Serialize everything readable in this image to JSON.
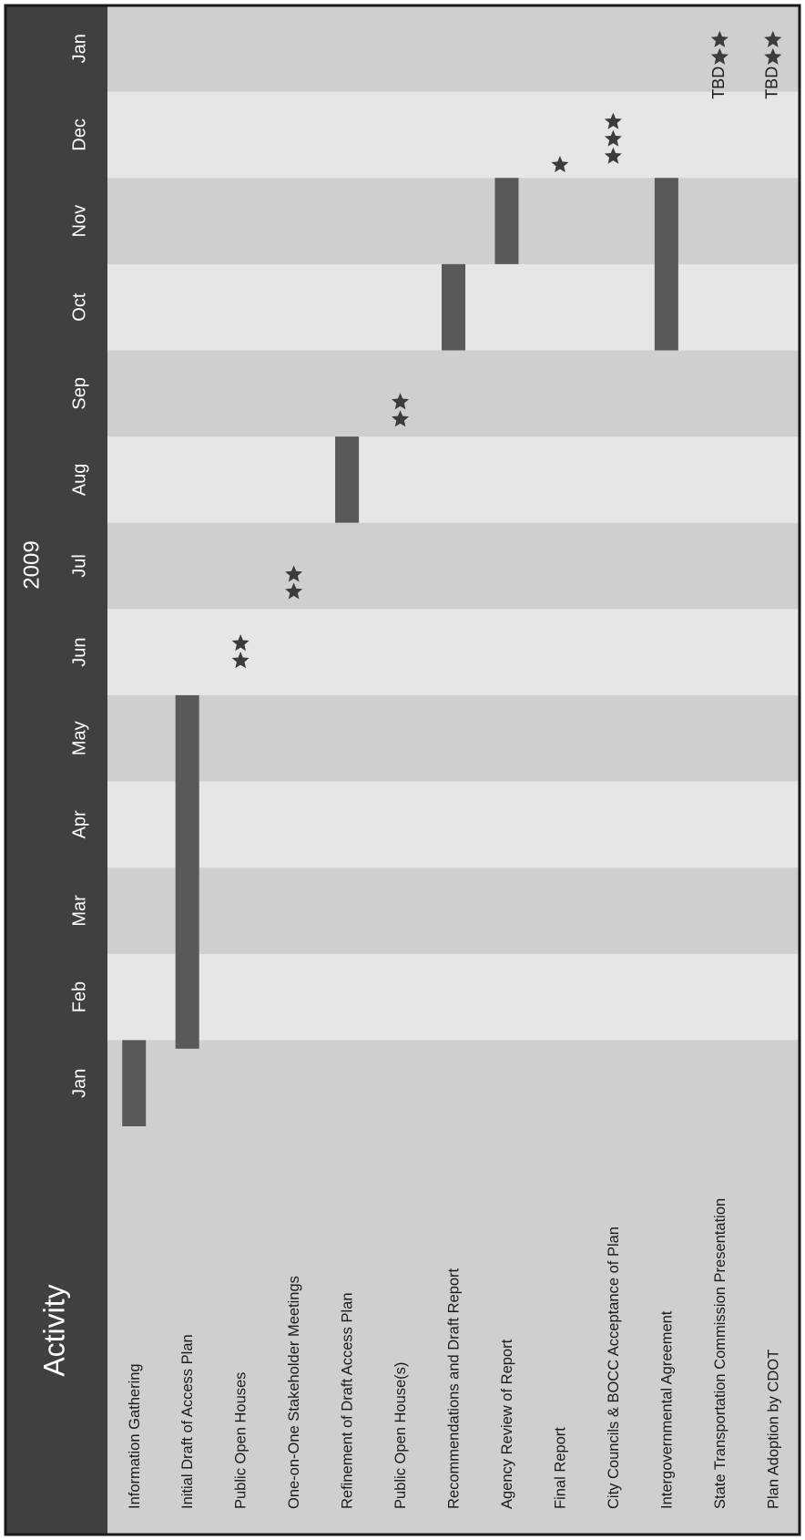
{
  "chart_data": {
    "type": "gantt",
    "header": {
      "title": "Activity",
      "year_label": "2009"
    },
    "months": [
      "Jan",
      "Feb",
      "Mar",
      "Apr",
      "May",
      "Jun",
      "Jul",
      "Aug",
      "Sep",
      "Oct",
      "Nov",
      "Dec",
      "Jan"
    ],
    "activities": [
      {
        "label": "Information Gathering",
        "bar": [
          0,
          1
        ]
      },
      {
        "label": "Initial Draft of Access Plan",
        "bar": [
          0.9,
          5
        ]
      },
      {
        "label": "Public Open Houses",
        "stars": {
          "month": 5.5,
          "count": 2
        }
      },
      {
        "label": "One-on-One Stakeholder Meetings",
        "stars": {
          "month": 6.3,
          "count": 2
        }
      },
      {
        "label": "Refinement of Draft Access Plan",
        "bar": [
          7,
          8
        ]
      },
      {
        "label": "Public Open House(s)",
        "stars": {
          "month": 8.3,
          "count": 2
        }
      },
      {
        "label": "Recommendations and Draft Report",
        "bar": [
          9,
          10
        ]
      },
      {
        "label": "Agency Review of Report",
        "bar": [
          10,
          11
        ]
      },
      {
        "label": "Final Report",
        "stars": {
          "month": 11.15,
          "count": 1
        }
      },
      {
        "label": "City Councils & BOCC Acceptance of Plan",
        "stars": {
          "month": 11.45,
          "count": 3
        }
      },
      {
        "label": "Intergovernmental Agreement",
        "bar": [
          9,
          11
        ]
      },
      {
        "label": "State Transportation Commission Presentation",
        "stars": {
          "month": 12.5,
          "count": 2
        },
        "note": "TBD"
      },
      {
        "label": "Plan Adoption by CDOT",
        "stars": {
          "month": 12.5,
          "count": 2
        },
        "note": "TBD"
      }
    ],
    "colors": {
      "header_bg": "#404040",
      "header_text": "#ffffff",
      "band_dark": "#cfcfcf",
      "band_light": "#e6e6e6",
      "bar": "#595959",
      "star": "#3c3c3c",
      "label_text": "#1a1a1a",
      "border": "#1a1a1a"
    }
  }
}
